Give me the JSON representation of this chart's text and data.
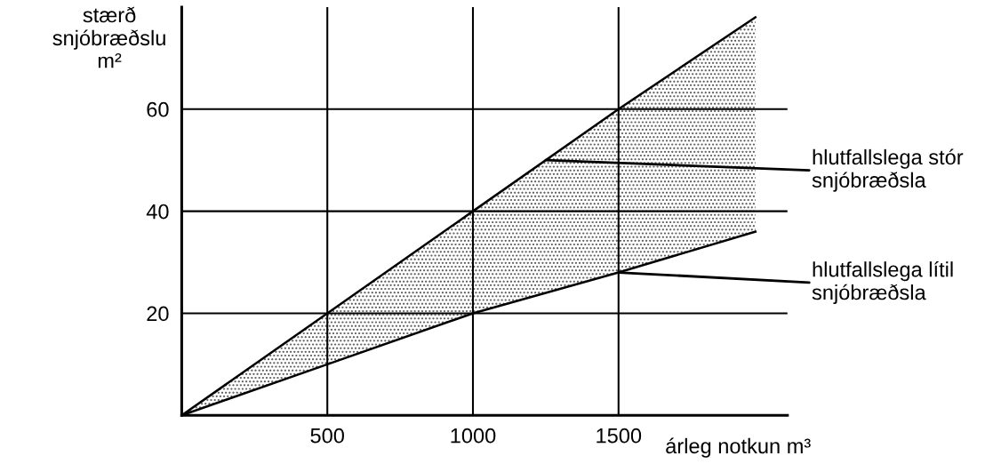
{
  "chart_data": {
    "type": "line",
    "xlabel": "árleg notkun m³",
    "ylabel": "stærð\nsnjóbræðslu\nm²",
    "x": [
      0,
      500,
      1000,
      1500,
      1970
    ],
    "series": [
      {
        "color": "#000000",
        "values": [
          0,
          10,
          20,
          28,
          36
        ]
      },
      {
        "color": "#000000",
        "values": [
          0,
          20,
          40,
          60,
          78
        ],
        "lower": [
          0,
          10,
          20,
          28,
          36
        ],
        "upper": [
          0,
          20,
          40,
          60,
          78
        ]
      }
    ],
    "xlim": [
      0,
      2080
    ],
    "ylim": [
      0,
      80
    ],
    "xticks": [
      500,
      1000,
      1500
    ],
    "yticks": [
      20,
      40,
      60
    ],
    "grid": true,
    "marker": "none",
    "line_style": "solid",
    "annotations": [
      {
        "text": "hlutfallslega stór\nsnjóbræðsla",
        "x": 1250,
        "y": 50
      },
      {
        "text": "hlutfallslega lítil\nsnjóbræðsla",
        "x": 1500,
        "y": 28
      }
    ]
  }
}
